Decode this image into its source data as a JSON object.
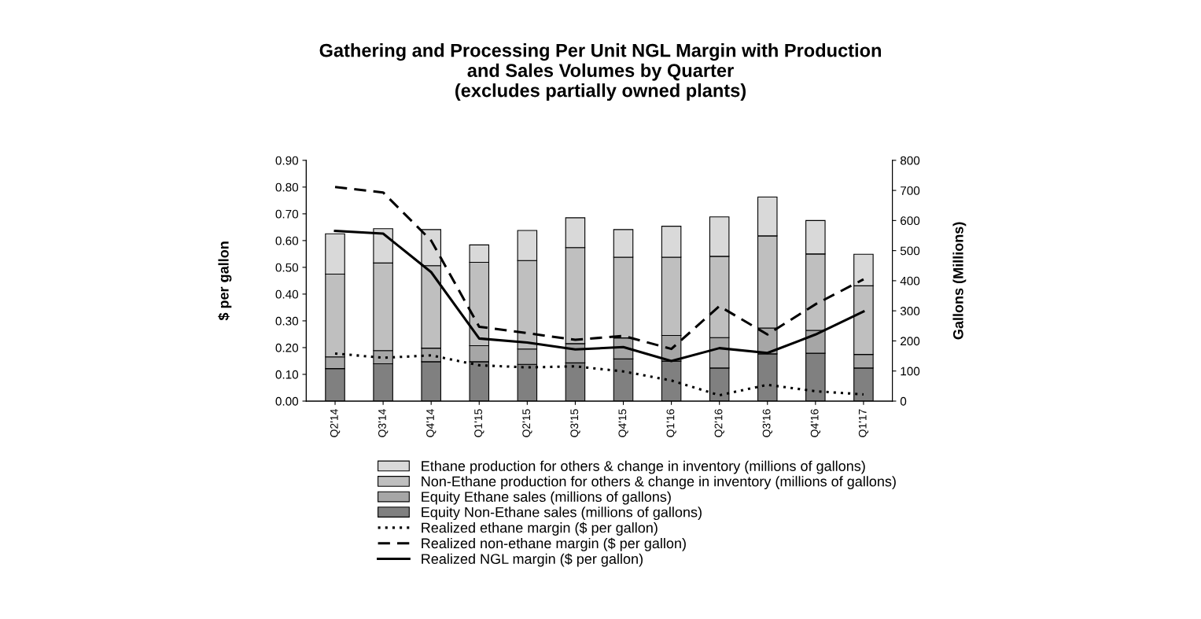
{
  "chart_data": {
    "type": "bar",
    "title": "Gathering and Processing Per Unit NGL Margin with Production\nand Sales Volumes by Quarter\n(excludes partially owned plants)",
    "ylabel": "$ per gallon",
    "y2label": "Gallons (Millions)",
    "categories": [
      "Q2'14",
      "Q3'14",
      "Q4'14",
      "Q1'15",
      "Q2'15",
      "Q3'15",
      "Q4'15",
      "Q1'16",
      "Q2'16",
      "Q3'16",
      "Q4'16",
      "Q1'17"
    ],
    "stacked": true,
    "series": [
      {
        "name": "Equity Non-Ethane sales (millions of gallons)",
        "axis": "y2",
        "color": "#808080",
        "values": [
          108,
          124,
          131,
          131,
          122,
          127,
          140,
          133,
          110,
          157,
          159,
          110
        ]
      },
      {
        "name": "Equity Ethane sales (millions of gallons)",
        "axis": "y2",
        "color": "#a6a6a6",
        "values": [
          39,
          44,
          45,
          53,
          51,
          64,
          70,
          85,
          101,
          86,
          76,
          45
        ]
      },
      {
        "name": "Non-Ethane production for others & change in inventory (millions of gallons)",
        "axis": "y2",
        "color": "#bfbfbf",
        "values": [
          275,
          291,
          274,
          277,
          294,
          319,
          268,
          260,
          270,
          306,
          254,
          228
        ]
      },
      {
        "name": "Ethane production for others & change in inventory (millions of gallons)",
        "axis": "y2",
        "color": "#d9d9d9",
        "values": [
          134,
          114,
          120,
          58,
          100,
          99,
          92,
          103,
          131,
          129,
          111,
          105
        ]
      },
      {
        "name": "Realized ethane margin ($ per gallon)",
        "type": "line",
        "line_style": "dotted",
        "color": "#000000",
        "values": [
          0.178,
          0.162,
          0.171,
          0.134,
          0.126,
          0.13,
          0.111,
          0.077,
          0.022,
          0.061,
          0.037,
          0.025
        ]
      },
      {
        "name": "Realized non-ethane margin ($ per gallon)",
        "type": "line",
        "line_style": "dashed",
        "color": "#000000",
        "values": [
          0.8,
          0.78,
          0.6,
          0.278,
          0.254,
          0.229,
          0.244,
          0.195,
          0.355,
          0.249,
          0.362,
          0.455
        ]
      },
      {
        "name": "Realized NGL margin ($ per gallon)",
        "type": "line",
        "line_style": "solid",
        "color": "#000000",
        "values": [
          0.636,
          0.626,
          0.482,
          0.234,
          0.219,
          0.193,
          0.202,
          0.15,
          0.198,
          0.18,
          0.249,
          0.335
        ]
      }
    ],
    "ylim": [
      0,
      0.9
    ],
    "yticks": [
      {
        "value": 0,
        "label": "0.00"
      },
      {
        "value": 0.1,
        "label": "0.10"
      },
      {
        "value": 0.2,
        "label": "0.20"
      },
      {
        "value": 0.3,
        "label": "0.30"
      },
      {
        "value": 0.4,
        "label": "0.40"
      },
      {
        "value": 0.5,
        "label": "0.50"
      },
      {
        "value": 0.6,
        "label": "0.60"
      },
      {
        "value": 0.7,
        "label": "0.70"
      },
      {
        "value": 0.8,
        "label": "0.80"
      },
      {
        "value": 0.9,
        "label": "0.90"
      }
    ],
    "y2lim": [
      0,
      800
    ],
    "y2ticks": [
      0,
      100,
      200,
      300,
      400,
      500,
      600,
      700,
      800
    ],
    "grid": false,
    "legend": "bottom"
  }
}
